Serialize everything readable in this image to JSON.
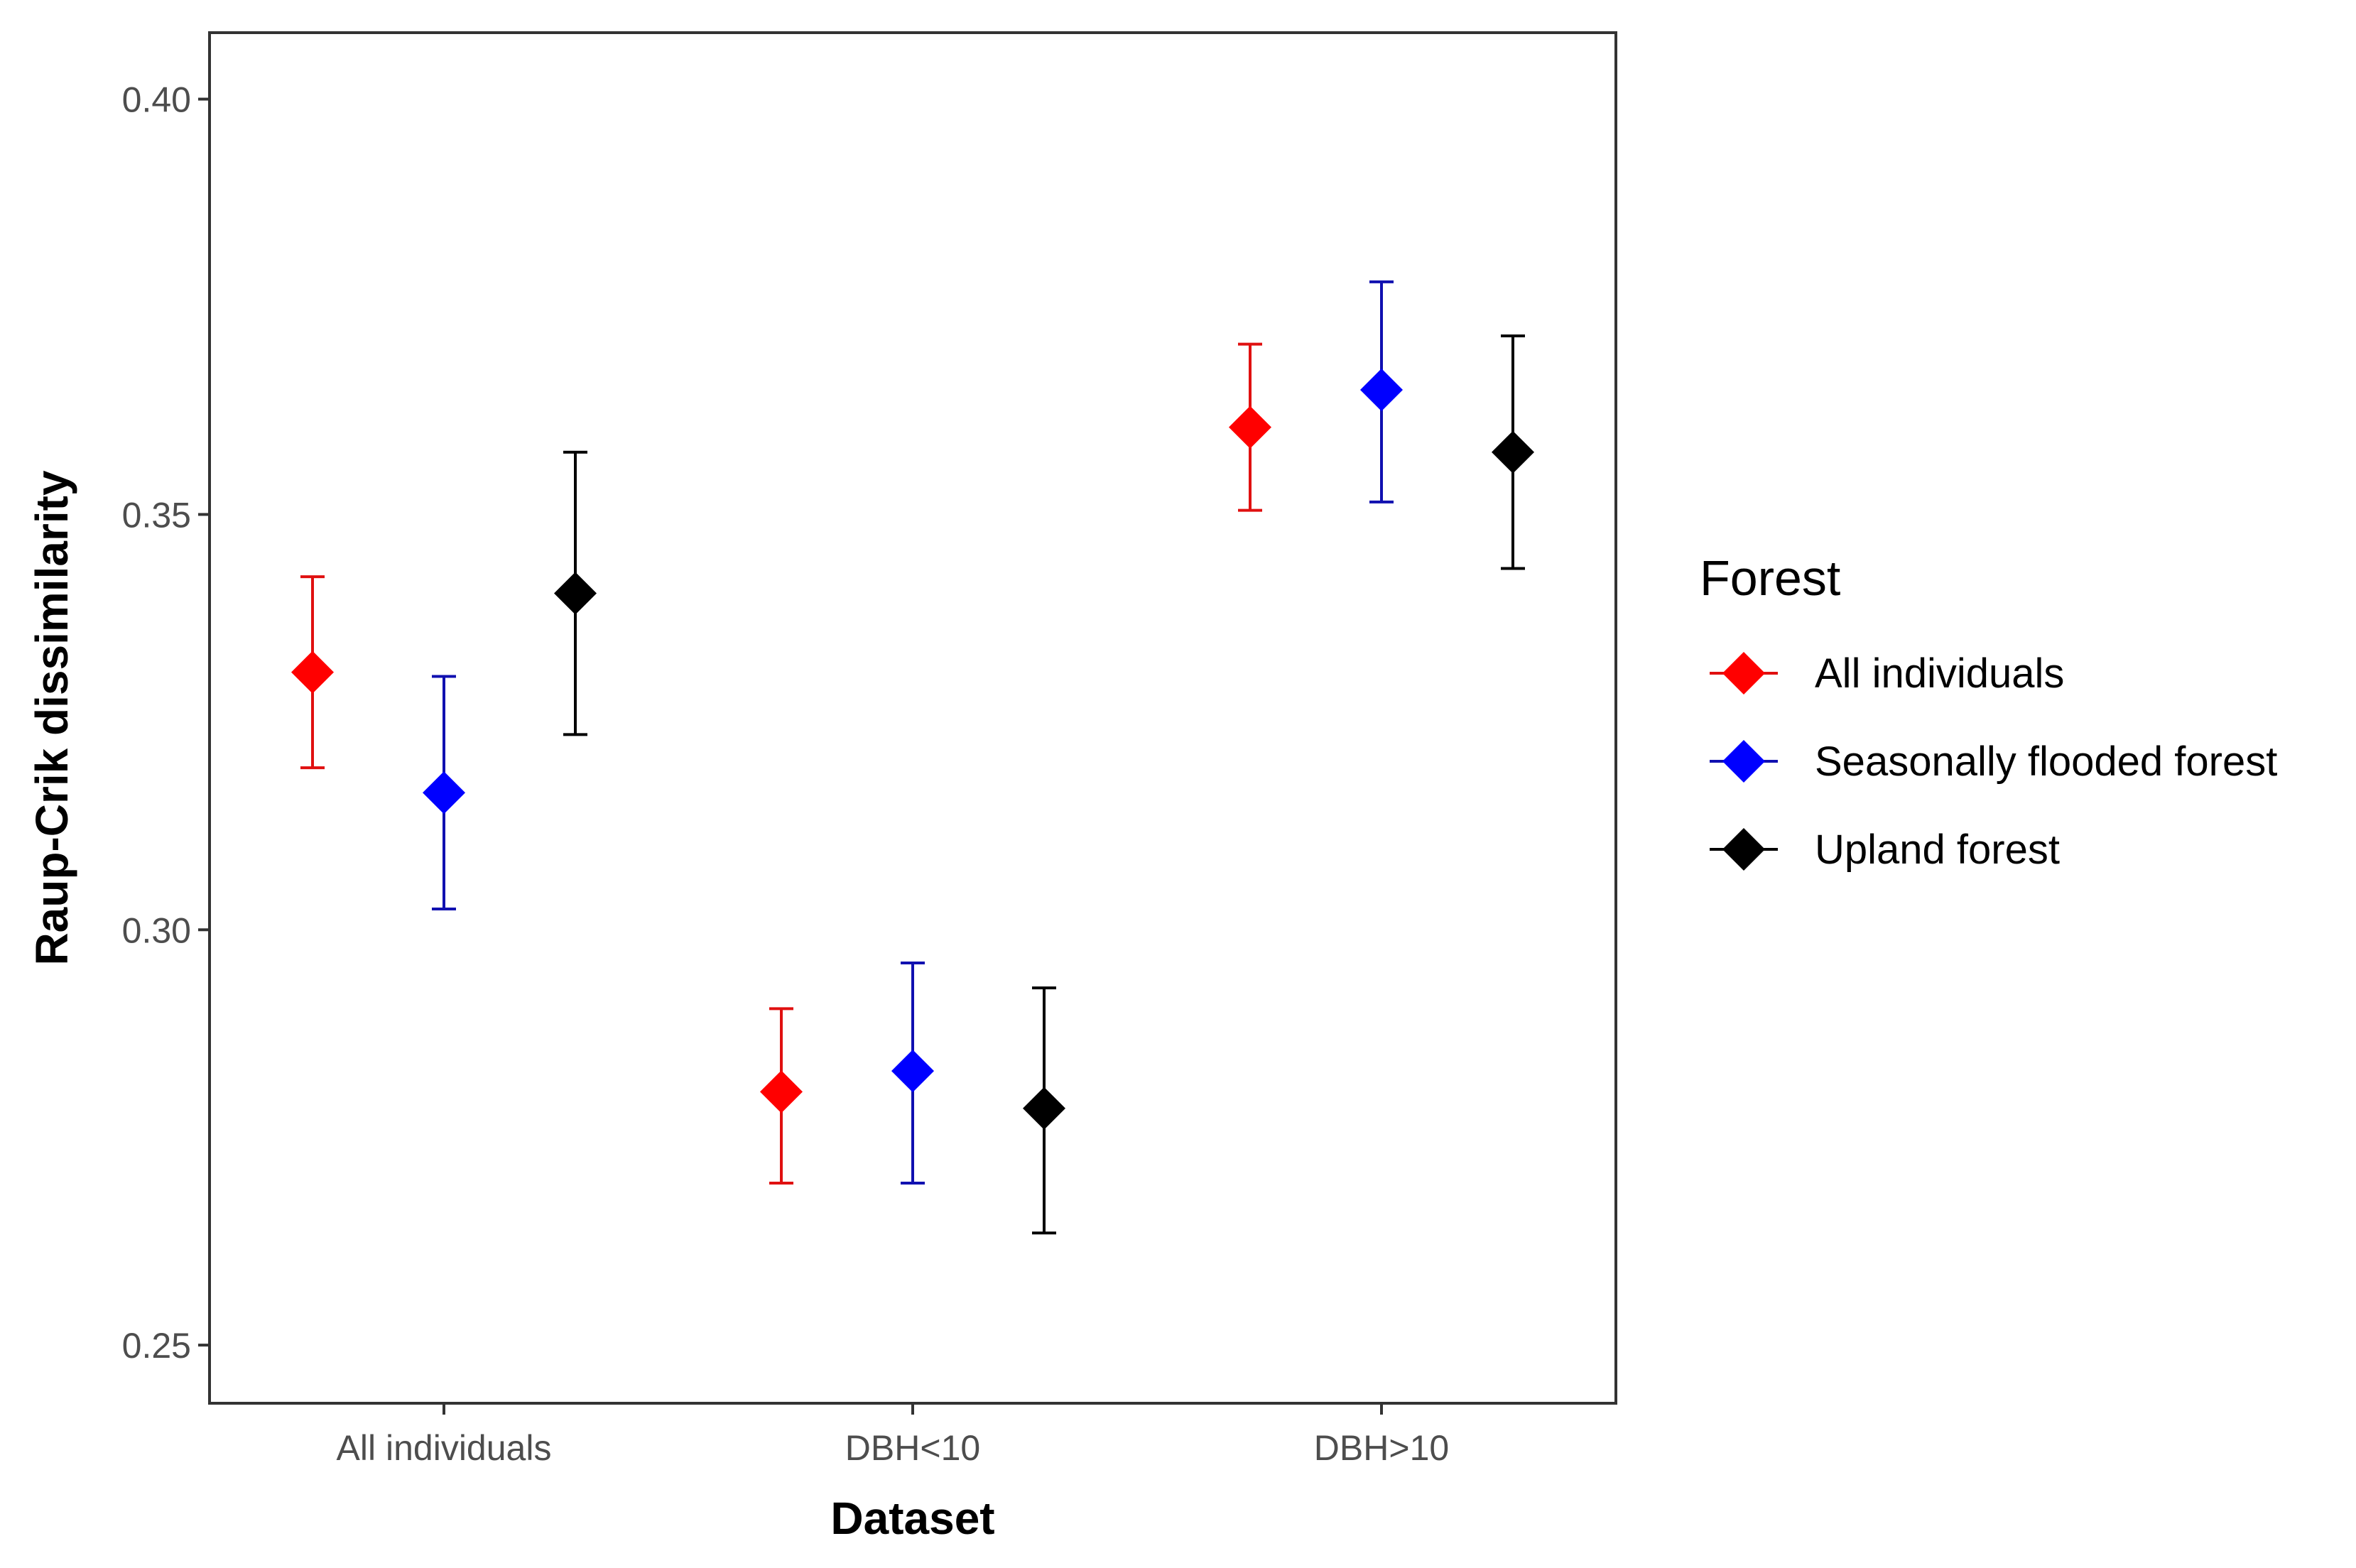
{
  "chart_data": {
    "type": "pointrange",
    "title": "",
    "xlabel": "Dataset",
    "ylabel": "Raup-Crik dissimilarity",
    "categories": [
      "All individuals",
      "DBH<10",
      "DBH>10"
    ],
    "ylim": [
      0.243,
      0.408
    ],
    "yticks": [
      0.25,
      0.3,
      0.35,
      0.4
    ],
    "ytick_labels": [
      "0.25",
      "0.30",
      "0.35",
      "0.40"
    ],
    "grid": false,
    "legend": {
      "title": "Forest",
      "position": "right"
    },
    "series": [
      {
        "name": "All individuals",
        "color": "#ff0000",
        "errorbar_color": "#e01010",
        "values": [
          0.331,
          0.2805,
          0.3605
        ],
        "lower": [
          0.3195,
          0.2695,
          0.3505
        ],
        "upper": [
          0.3425,
          0.2905,
          0.3705
        ]
      },
      {
        "name": "Seasonally flooded forest",
        "color": "#0000ff",
        "errorbar_color": "#1010b0",
        "values": [
          0.3165,
          0.283,
          0.365
        ],
        "lower": [
          0.3025,
          0.2695,
          0.3515
        ],
        "upper": [
          0.3305,
          0.296,
          0.378
        ]
      },
      {
        "name": "Upland forest",
        "color": "#000000",
        "errorbar_color": "#000000",
        "values": [
          0.3405,
          0.2785,
          0.3575
        ],
        "lower": [
          0.3235,
          0.2635,
          0.3435
        ],
        "upper": [
          0.3575,
          0.293,
          0.3715
        ]
      }
    ]
  }
}
